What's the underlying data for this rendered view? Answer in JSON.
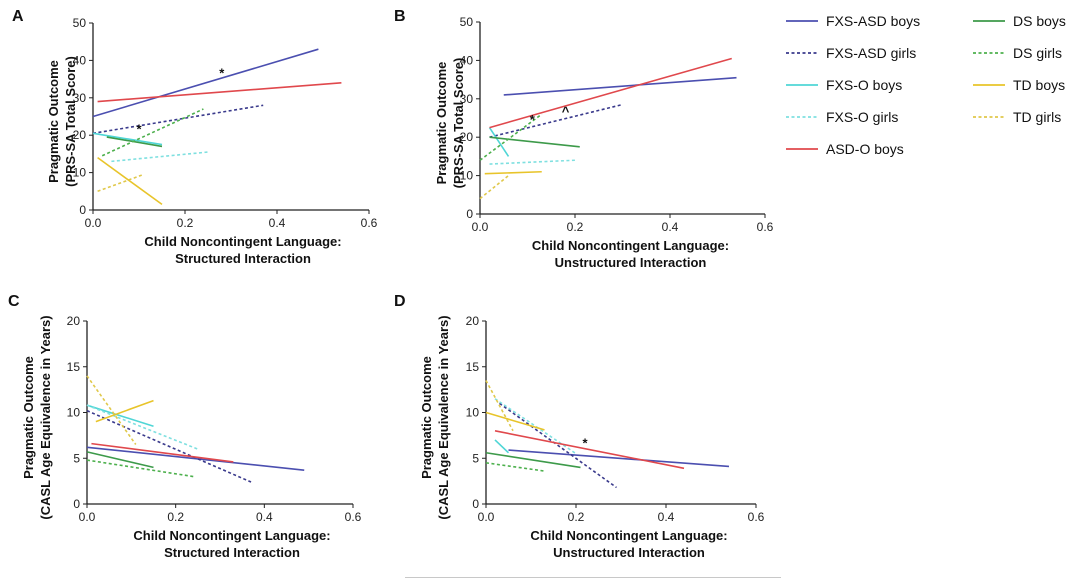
{
  "colors": {
    "FXS-ASD boys": "#4b4fb0",
    "FXS-ASD girls": "#3a3a8c",
    "FXS-O boys": "#4fd6d6",
    "FXS-O girls": "#7fe0e0",
    "ASD-O boys": "#e0484c",
    "DS boys": "#3d9a4a",
    "DS girls": "#4db04d",
    "TD boys": "#e8c42a",
    "TD girls": "#e0c84a"
  },
  "legend": [
    {
      "name": "FXS-ASD boys",
      "dashed": false
    },
    {
      "name": "FXS-ASD girls",
      "dashed": true
    },
    {
      "name": "FXS-O boys",
      "dashed": false
    },
    {
      "name": "FXS-O girls",
      "dashed": true
    },
    {
      "name": "ASD-O boys",
      "dashed": false
    },
    {
      "name": "DS boys",
      "dashed": false
    },
    {
      "name": "DS girls",
      "dashed": true
    },
    {
      "name": "TD boys",
      "dashed": false
    },
    {
      "name": "TD girls",
      "dashed": true
    }
  ],
  "chart_data": [
    {
      "panel": "A",
      "type": "line",
      "xlabel": [
        "Child Noncontingent Language:",
        "Structured Interaction"
      ],
      "ylabel": [
        "Pragmatic Outcome",
        "(PRS-SA Total Score)"
      ],
      "xlim": [
        0,
        0.6
      ],
      "ylim": [
        0,
        50
      ],
      "xticks": [
        "0.0",
        "0.2",
        "0.4",
        "0.6"
      ],
      "yticks": [
        "0",
        "10",
        "20",
        "30",
        "40",
        "50"
      ],
      "series": [
        {
          "name": "FXS-ASD boys",
          "x": [
            0.0,
            0.49
          ],
          "y": [
            25,
            43
          ]
        },
        {
          "name": "FXS-ASD girls",
          "x": [
            0.0,
            0.37
          ],
          "y": [
            20.5,
            28
          ]
        },
        {
          "name": "FXS-O boys",
          "x": [
            0.0,
            0.15
          ],
          "y": [
            20.5,
            17.5
          ]
        },
        {
          "name": "FXS-O girls",
          "x": [
            0.04,
            0.25
          ],
          "y": [
            13,
            15.5
          ]
        },
        {
          "name": "ASD-O boys",
          "x": [
            0.01,
            0.54
          ],
          "y": [
            29,
            34
          ]
        },
        {
          "name": "DS boys",
          "x": [
            0.03,
            0.15
          ],
          "y": [
            19.5,
            17
          ]
        },
        {
          "name": "DS girls",
          "x": [
            0.02,
            0.24
          ],
          "y": [
            14.5,
            27
          ]
        },
        {
          "name": "TD boys",
          "x": [
            0.01,
            0.15
          ],
          "y": [
            14,
            1.5
          ]
        },
        {
          "name": "TD girls",
          "x": [
            0.01,
            0.11
          ],
          "y": [
            5,
            9.5
          ]
        }
      ],
      "annotations": [
        {
          "text": "*",
          "x": 0.28,
          "y": 36.5
        },
        {
          "text": "*",
          "x": 0.1,
          "y": 21.5
        }
      ]
    },
    {
      "panel": "B",
      "type": "line",
      "xlabel": [
        "Child Noncontingent Language:",
        "Unstructured Interaction"
      ],
      "ylabel": [
        "Pragmatic Outcome",
        "(PRS-SA Total Score)"
      ],
      "xlim": [
        0,
        0.6
      ],
      "ylim": [
        0,
        50
      ],
      "xticks": [
        "0.0",
        "0.2",
        "0.4",
        "0.6"
      ],
      "yticks": [
        "0",
        "10",
        "20",
        "30",
        "40",
        "50"
      ],
      "series": [
        {
          "name": "FXS-ASD boys",
          "x": [
            0.05,
            0.54
          ],
          "y": [
            31,
            35.5
          ]
        },
        {
          "name": "FXS-ASD girls",
          "x": [
            0.02,
            0.3
          ],
          "y": [
            20,
            28.5
          ]
        },
        {
          "name": "FXS-O boys",
          "x": [
            0.02,
            0.06
          ],
          "y": [
            22.5,
            15
          ]
        },
        {
          "name": "FXS-O girls",
          "x": [
            0.02,
            0.2
          ],
          "y": [
            13,
            14
          ]
        },
        {
          "name": "ASD-O boys",
          "x": [
            0.02,
            0.53
          ],
          "y": [
            22.5,
            40.5
          ]
        },
        {
          "name": "DS boys",
          "x": [
            0.02,
            0.21
          ],
          "y": [
            20,
            17.5
          ]
        },
        {
          "name": "DS girls",
          "x": [
            0.0,
            0.13
          ],
          "y": [
            14,
            26
          ]
        },
        {
          "name": "TD boys",
          "x": [
            0.01,
            0.13
          ],
          "y": [
            10.5,
            11
          ]
        },
        {
          "name": "TD girls",
          "x": [
            0.0,
            0.06
          ],
          "y": [
            4,
            10
          ]
        }
      ],
      "annotations": [
        {
          "text": "*",
          "x": 0.11,
          "y": 24.5
        },
        {
          "text": "^",
          "x": 0.18,
          "y": 26.5
        }
      ]
    },
    {
      "panel": "C",
      "type": "line",
      "xlabel": [
        "Child Noncontingent Language:",
        "Structured Interaction"
      ],
      "ylabel": [
        "Pragmatic Outcome",
        "(CASL Age Equivalence in  Years)"
      ],
      "xlim": [
        0,
        0.6
      ],
      "ylim": [
        0,
        20
      ],
      "xticks": [
        "0.0",
        "0.2",
        "0.4",
        "0.6"
      ],
      "yticks": [
        "0",
        "5",
        "10",
        "15",
        "20"
      ],
      "series": [
        {
          "name": "FXS-ASD boys",
          "x": [
            0.0,
            0.49
          ],
          "y": [
            6.2,
            3.7
          ]
        },
        {
          "name": "FXS-ASD girls",
          "x": [
            0.0,
            0.37
          ],
          "y": [
            10.2,
            2.4
          ]
        },
        {
          "name": "FXS-O boys",
          "x": [
            0.0,
            0.15
          ],
          "y": [
            10.8,
            8.5
          ]
        },
        {
          "name": "FXS-O girls",
          "x": [
            0.0,
            0.25
          ],
          "y": [
            10.8,
            6.0
          ]
        },
        {
          "name": "ASD-O boys",
          "x": [
            0.01,
            0.33
          ],
          "y": [
            6.6,
            4.6
          ]
        },
        {
          "name": "DS boys",
          "x": [
            0.0,
            0.15
          ],
          "y": [
            5.7,
            4.0
          ]
        },
        {
          "name": "DS girls",
          "x": [
            0.0,
            0.24
          ],
          "y": [
            4.8,
            3.0
          ]
        },
        {
          "name": "TD boys",
          "x": [
            0.02,
            0.15
          ],
          "y": [
            9.0,
            11.3
          ]
        },
        {
          "name": "TD girls",
          "x": [
            0.0,
            0.11
          ],
          "y": [
            14.0,
            6.5
          ]
        }
      ],
      "annotations": []
    },
    {
      "panel": "D",
      "type": "line",
      "xlabel": [
        "Child Noncontingent Language:",
        "Unstructured Interaction"
      ],
      "ylabel": [
        "Pragmatic Outcome",
        "(CASL Age Equivalence in  Years)"
      ],
      "xlim": [
        0,
        0.6
      ],
      "ylim": [
        0,
        20
      ],
      "xticks": [
        "0.0",
        "0.2",
        "0.4",
        "0.6"
      ],
      "yticks": [
        "0",
        "5",
        "10",
        "15",
        "20"
      ],
      "series": [
        {
          "name": "FXS-ASD boys",
          "x": [
            0.05,
            0.54
          ],
          "y": [
            5.9,
            4.1
          ]
        },
        {
          "name": "FXS-ASD girls",
          "x": [
            0.03,
            0.29
          ],
          "y": [
            11.0,
            1.8
          ]
        },
        {
          "name": "FXS-O boys",
          "x": [
            0.02,
            0.05
          ],
          "y": [
            7.0,
            5.6
          ]
        },
        {
          "name": "FXS-O girls",
          "x": [
            0.02,
            0.2
          ],
          "y": [
            11.5,
            5.5
          ]
        },
        {
          "name": "ASD-O boys",
          "x": [
            0.02,
            0.44
          ],
          "y": [
            8.0,
            3.9
          ]
        },
        {
          "name": "DS boys",
          "x": [
            0.0,
            0.21
          ],
          "y": [
            5.6,
            4.0
          ]
        },
        {
          "name": "DS girls",
          "x": [
            0.0,
            0.13
          ],
          "y": [
            4.5,
            3.6
          ]
        },
        {
          "name": "TD boys",
          "x": [
            0.0,
            0.13
          ],
          "y": [
            10.0,
            8.1
          ]
        },
        {
          "name": "TD girls",
          "x": [
            0.0,
            0.06
          ],
          "y": [
            13.5,
            8.0
          ]
        }
      ],
      "annotations": [
        {
          "text": "*",
          "x": 0.22,
          "y": 6.6
        }
      ]
    }
  ]
}
